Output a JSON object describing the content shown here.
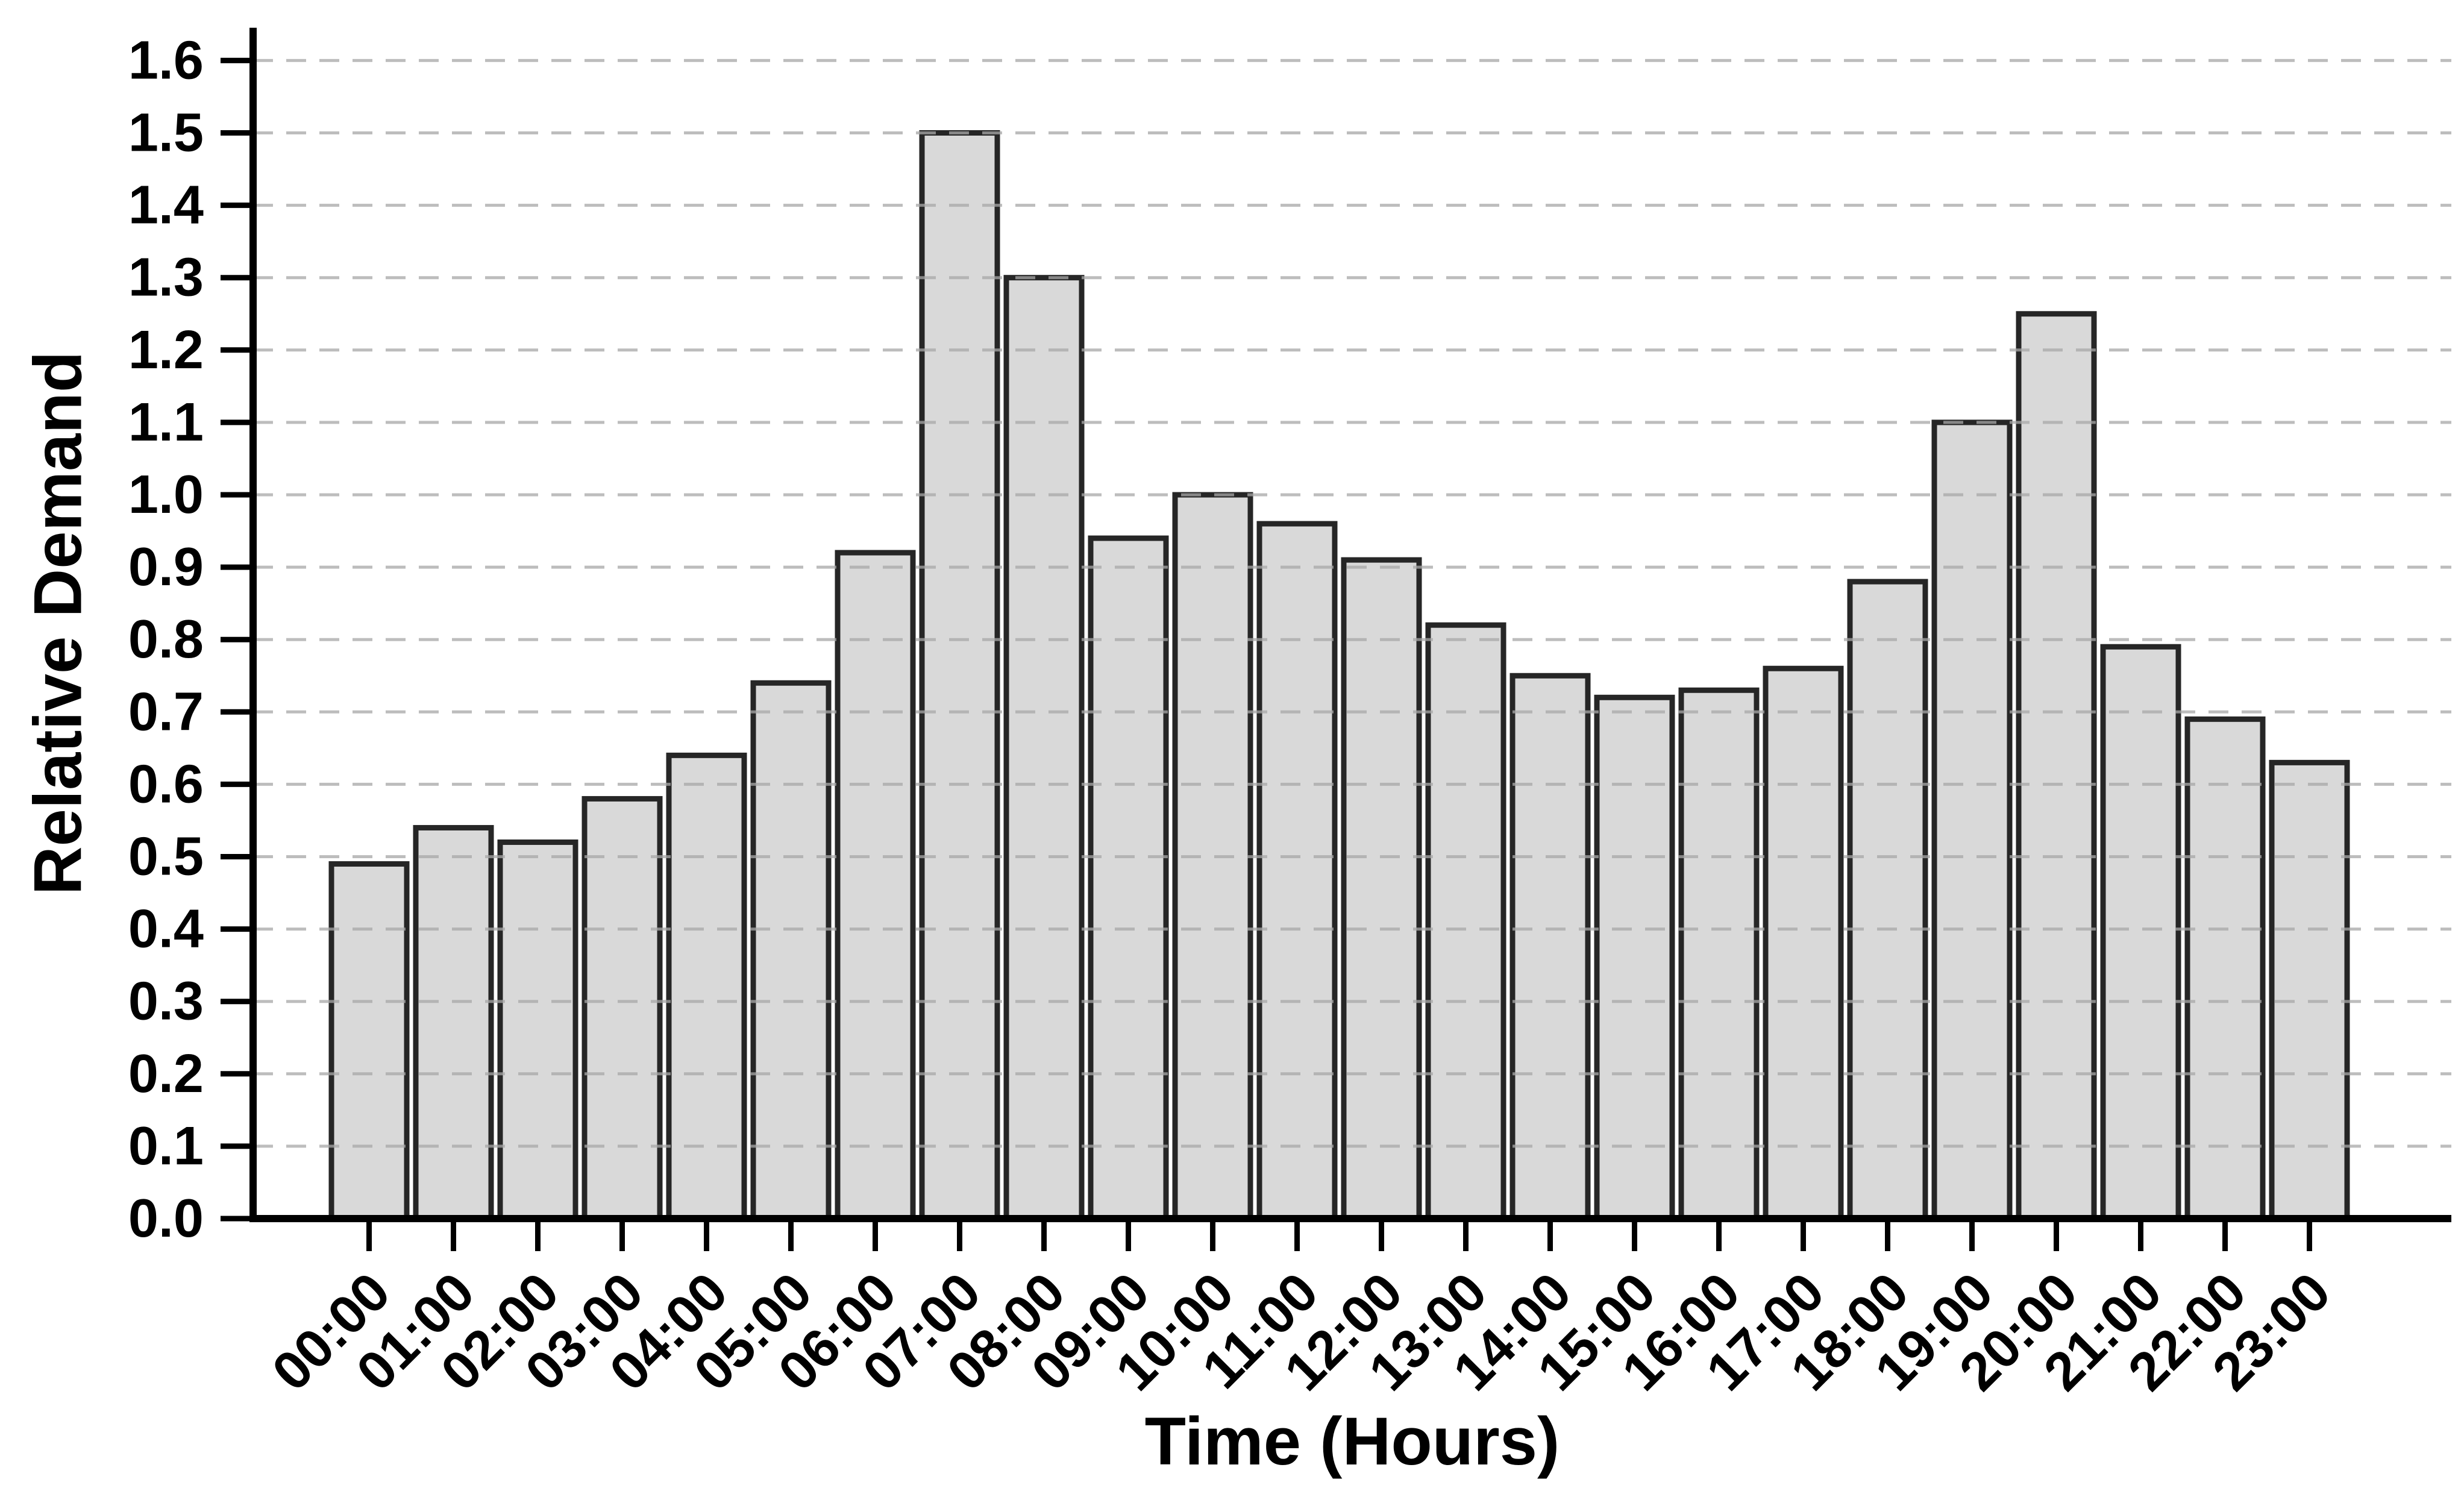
{
  "chart_data": {
    "type": "bar",
    "title": "",
    "xlabel": "Time (Hours)",
    "ylabel": "Relative Demand",
    "categories": [
      "00:00",
      "01:00",
      "02:00",
      "03:00",
      "04:00",
      "05:00",
      "06:00",
      "07:00",
      "08:00",
      "09:00",
      "10:00",
      "11:00",
      "12:00",
      "13:00",
      "14:00",
      "15:00",
      "16:00",
      "17:00",
      "18:00",
      "19:00",
      "20:00",
      "21:00",
      "22:00",
      "23:00"
    ],
    "values": [
      0.49,
      0.54,
      0.52,
      0.58,
      0.64,
      0.74,
      0.92,
      1.5,
      1.3,
      0.94,
      1.0,
      0.96,
      0.91,
      0.82,
      0.75,
      0.72,
      0.73,
      0.76,
      0.88,
      1.1,
      1.25,
      0.79,
      0.69,
      0.63
    ],
    "ylim": [
      0.0,
      1.6
    ],
    "ytick_step": 0.1,
    "ytick_labels": [
      "0.0",
      "0.1",
      "0.2",
      "0.3",
      "0.4",
      "0.5",
      "0.6",
      "0.7",
      "0.8",
      "0.9",
      "1.0",
      "1.1",
      "1.2",
      "1.3",
      "1.4",
      "1.5",
      "1.6"
    ],
    "x_tick_rotation_deg": 45,
    "grid": "horizontal-dashed",
    "legend": "none",
    "colors": {
      "background": "#ffffff",
      "bar_fill": "#d9d9d9",
      "bar_edge": "#262626",
      "grid_line": "#a8a8a8",
      "axis_line": "#000000",
      "text": "#000000"
    }
  }
}
